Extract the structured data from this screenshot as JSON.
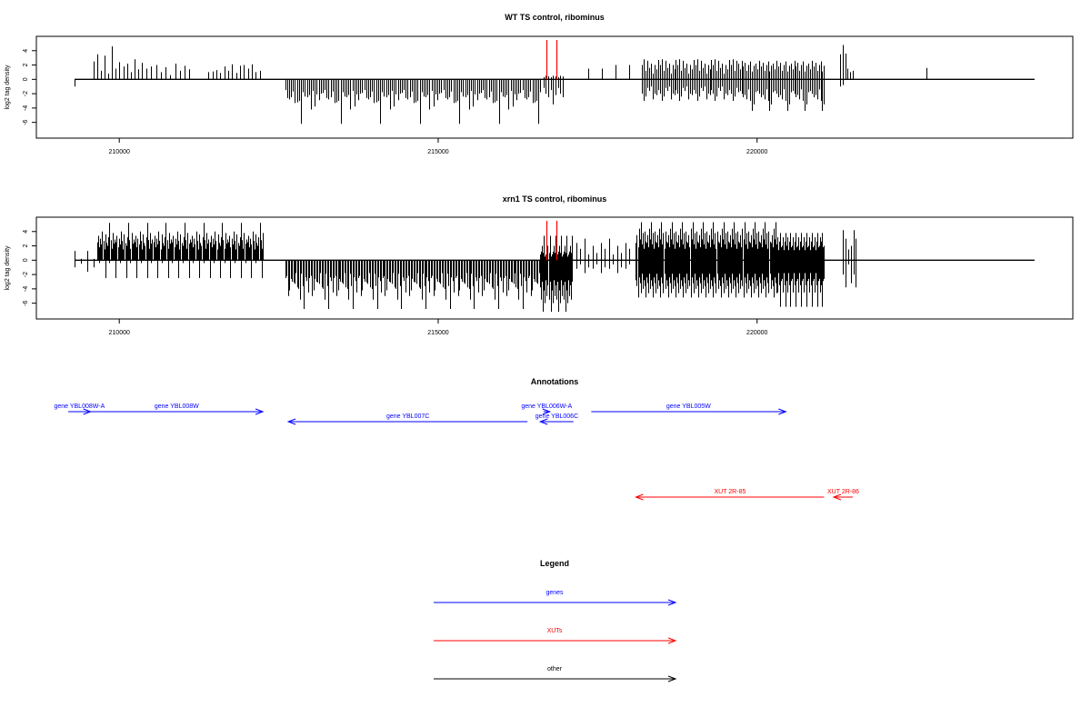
{
  "colors": {
    "genes": "#0000ff",
    "xuts": "#ff0000",
    "other": "#000000",
    "signal": "#000000",
    "highlight": "#ff0000"
  },
  "chart_data": [
    {
      "type": "bar",
      "title": "WT TS control, ribominus",
      "ylabel": "log2 tag density",
      "xlim": [
        208700,
        224950
      ],
      "ylim": [
        -8.2,
        6
      ],
      "x_ticks": [
        210000,
        215000,
        220000
      ],
      "y_ticks": [
        4,
        2,
        0,
        -2,
        -4,
        -6
      ],
      "grid": false,
      "baseline_range": [
        209300,
        224350
      ],
      "approximate": true,
      "clusters": [
        {
          "x": [
            209300,
            209300
          ],
          "n": 1,
          "top": [
            0
          ],
          "bottom": [
            -1
          ]
        },
        {
          "x": [
            209600,
            210350
          ],
          "n": 14,
          "top": [
            2.5,
            3.5,
            1.2,
            3.3,
            0.8,
            4.6,
            1.5,
            2.4,
            1.8,
            2.2,
            1.0,
            2.8,
            1.4,
            2.0
          ],
          "bottom": [
            0
          ]
        },
        {
          "x": [
            210350,
            211100
          ],
          "n": 11,
          "top": [
            2.3,
            1.5,
            1.8,
            2.0,
            1.0,
            1.7,
            0.6,
            2.2,
            1.2,
            1.9,
            1.4
          ],
          "bottom": [
            0
          ]
        },
        {
          "x": [
            211400,
            212200
          ],
          "n": 14,
          "top": [
            1.0,
            1.1,
            1.3,
            0.9,
            1.8,
            1.2,
            2.1,
            0.9,
            1.9,
            2.0,
            1.5,
            2.1,
            1.0,
            1.2
          ],
          "bottom": [
            0
          ]
        },
        {
          "x": [
            212600,
            216600
          ],
          "n": 130,
          "top": [
            0
          ],
          "bottom": [
            -1.5,
            -2.5,
            -3.2,
            -1.8,
            -2.2,
            -3.8,
            -2.0,
            -2.6,
            -1.7,
            -3.0,
            -2.4,
            -4.2,
            -2.1,
            -1.9,
            -2.8,
            -3.3,
            -6.2,
            -2.5,
            -1.6,
            -2.9
          ]
        },
        {
          "x": [
            216650,
            216950
          ],
          "n": 9,
          "top": [
            0.3,
            0.5,
            0.4
          ],
          "bottom": [
            -1.2,
            -2.0,
            -2.5,
            -1.5,
            -3.5,
            -2.2
          ]
        },
        {
          "x": [
            217350,
            218000
          ],
          "n": 4,
          "top": [
            1.5,
            1.5,
            2.0,
            2.0
          ],
          "bottom": [
            0
          ]
        },
        {
          "x": [
            218200,
            219700
          ],
          "n": 55,
          "top": [
            2.0,
            2.8,
            1.2,
            2.6,
            1.6,
            2.2,
            0.8,
            2.0,
            1.4,
            2.7
          ],
          "bottom": [
            -2.0,
            -1.2,
            -2.8,
            -1.5,
            -2.4,
            -1.0,
            -2.2,
            -3.0,
            -1.6,
            -2.0
          ]
        },
        {
          "x": [
            219700,
            221050
          ],
          "n": 50,
          "top": [
            2.2,
            1.4,
            2.6,
            1.8,
            2.3,
            1.2,
            2.0,
            2.5,
            1.1,
            1.9
          ],
          "bottom": [
            -1.8,
            -2.5,
            -1.4,
            -3.5,
            -2.0,
            -2.8,
            -4.4,
            -1.6,
            -2.2,
            -3.0
          ]
        },
        {
          "x": [
            221300,
            221500
          ],
          "n": 6,
          "top": [
            3.5,
            4.8,
            3.6,
            1.5,
            1.0,
            1.2
          ],
          "bottom": [
            -1.0,
            -0.8,
            0,
            0,
            0,
            0
          ]
        },
        {
          "x": [
            222650,
            222650
          ],
          "n": 1,
          "top": [
            1.6
          ],
          "bottom": [
            0
          ]
        }
      ],
      "highlights": [
        {
          "x": 216700,
          "top": 5.5,
          "bottom": 0
        },
        {
          "x": 216850,
          "top": 5.5,
          "bottom": 0
        }
      ]
    },
    {
      "type": "bar",
      "title": "xrn1 TS control, ribominus",
      "ylabel": "log2 tag density",
      "xlim": [
        208700,
        224950
      ],
      "ylim": [
        -8.2,
        6
      ],
      "x_ticks": [
        210000,
        215000,
        220000
      ],
      "y_ticks": [
        4,
        2,
        0,
        -2,
        -4,
        -6
      ],
      "grid": false,
      "baseline_range": [
        209300,
        224350
      ],
      "approximate": true,
      "clusters": [
        {
          "x": [
            209300,
            209600
          ],
          "n": 4,
          "top": [
            1.3,
            0.2
          ],
          "bottom": [
            -1.0,
            -0.5,
            -1.6
          ]
        },
        {
          "x": [
            209650,
            212250
          ],
          "n": 160,
          "top": [
            2.5,
            3.4,
            1.8,
            3.0,
            2.2,
            4.0,
            2.7,
            1.5,
            3.6,
            2.4,
            2.0,
            3.2,
            5.2,
            2.8,
            1.6,
            3.8,
            2.3,
            2.9
          ],
          "bottom": [
            0,
            0,
            0,
            0,
            -0.4,
            0,
            -2.5,
            0,
            0,
            0
          ]
        },
        {
          "x": [
            212600,
            216600
          ],
          "n": 190,
          "top": [
            0
          ],
          "bottom": [
            -2.5,
            -3.6,
            -1.8,
            -4.2,
            -2.9,
            -5.5,
            -3.1,
            -2.2,
            -6.8,
            -3.8,
            -2.6,
            -4.5,
            -1.9,
            -3.3,
            -5.0,
            -2.4,
            -4.0,
            -3.0
          ]
        },
        {
          "x": [
            216600,
            217100
          ],
          "n": 35,
          "top": [
            0.8,
            1.2,
            2.0,
            1.0,
            3.4,
            0.5
          ],
          "bottom": [
            -3.5,
            -5.0,
            -2.8,
            -6.0,
            -4.2,
            -7.2,
            -3.0,
            -5.5
          ]
        },
        {
          "x": [
            217100,
            218000
          ],
          "n": 15,
          "top": [
            1.0,
            2.4,
            1.6,
            3.0,
            0.8,
            2.0
          ],
          "bottom": [
            -1.0,
            -1.8,
            -0.6,
            -1.2
          ]
        },
        {
          "x": [
            218100,
            220300
          ],
          "n": 150,
          "top": [
            2.4,
            3.5,
            1.8,
            4.4,
            2.9,
            5.3,
            2.2,
            3.8,
            1.6,
            4.0,
            2.6
          ],
          "bottom": [
            -2.8,
            -4.0,
            -1.9,
            -4.6,
            -3.2,
            -2.4,
            -5.2,
            -3.6
          ]
        },
        {
          "x": [
            220300,
            221050
          ],
          "n": 55,
          "top": [
            2.0,
            3.2,
            1.4,
            2.6,
            3.8,
            1.8
          ],
          "bottom": [
            -2.6,
            -4.5,
            -1.8,
            -3.5,
            -6.5,
            -2.9
          ]
        },
        {
          "x": [
            221350,
            221550
          ],
          "n": 6,
          "top": [
            4.2,
            3.0,
            1.5,
            2.0
          ],
          "bottom": [
            -2.0,
            -3.2,
            -0.6,
            -3.8
          ]
        }
      ],
      "highlights": [
        {
          "x": 216700,
          "top": 5.5,
          "bottom": 0
        },
        {
          "x": 216850,
          "top": 5.5,
          "bottom": 0
        }
      ]
    }
  ],
  "annotations": {
    "title": "Annotations",
    "features": [
      {
        "kind": "genes",
        "label": "gene YBL008W-A",
        "x1": 209200,
        "x2": 209550,
        "dir": "right",
        "row": 0
      },
      {
        "kind": "genes",
        "label": "gene YBL008W",
        "x1": 209550,
        "x2": 212250,
        "dir": "right",
        "row": 0
      },
      {
        "kind": "genes",
        "label": "gene YBL007C",
        "x1": 212650,
        "x2": 216400,
        "dir": "left",
        "row": 1
      },
      {
        "kind": "genes",
        "label": "gene YBL006W-A",
        "x1": 216650,
        "x2": 216750,
        "dir": "right",
        "row": 0
      },
      {
        "kind": "genes",
        "label": "gene YBL006C",
        "x1": 216600,
        "x2": 217120,
        "dir": "left",
        "row": 1
      },
      {
        "kind": "genes",
        "label": "gene YBL005W",
        "x1": 217400,
        "x2": 220450,
        "dir": "right",
        "row": 0
      },
      {
        "kind": "xuts",
        "label": "XUT 2R-85",
        "x1": 218100,
        "x2": 221050,
        "dir": "left",
        "row": 2
      },
      {
        "kind": "xuts",
        "label": "XUT 2R-86",
        "x1": 221200,
        "x2": 221500,
        "dir": "left",
        "row": 2
      }
    ]
  },
  "legend": {
    "title": "Legend",
    "items": [
      {
        "kind": "genes",
        "label": "genes"
      },
      {
        "kind": "xuts",
        "label": "XUTs"
      },
      {
        "kind": "other",
        "label": "other"
      }
    ]
  }
}
